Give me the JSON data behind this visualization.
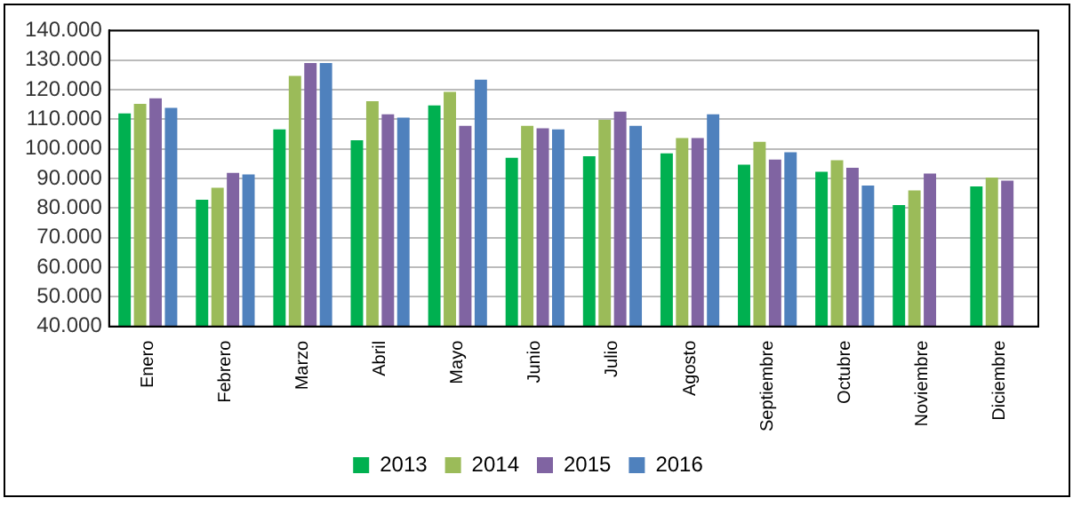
{
  "chart_data": {
    "type": "bar",
    "categories": [
      "Enero",
      "Febrero",
      "Marzo",
      "Abril",
      "Mayo",
      "Junio",
      "Julio",
      "Agosto",
      "Septiembre",
      "Octubre",
      "Noviembre",
      "Diciembre"
    ],
    "series": [
      {
        "name": "2013",
        "color": "#00b050",
        "values": [
          112000,
          82800,
          106600,
          102900,
          114700,
          97000,
          97500,
          98500,
          94700,
          92300,
          81000,
          87300
        ]
      },
      {
        "name": "2014",
        "color": "#9bbb59",
        "values": [
          115200,
          86900,
          124700,
          116100,
          119300,
          107800,
          109800,
          103700,
          102400,
          96200,
          86000,
          90300
        ]
      },
      {
        "name": "2015",
        "color": "#8064a2",
        "values": [
          117100,
          91900,
          129000,
          111700,
          107800,
          107000,
          112600,
          103700,
          96400,
          93600,
          91700,
          89300
        ]
      },
      {
        "name": "2016",
        "color": "#4f81bd",
        "values": [
          113900,
          91400,
          129000,
          110600,
          123400,
          106600,
          107800,
          111700,
          98900,
          87600,
          null,
          null
        ]
      }
    ],
    "ylim": [
      40000,
      140000
    ],
    "yticks": [
      {
        "value": 40000,
        "label": "40.000"
      },
      {
        "value": 50000,
        "label": "50.000"
      },
      {
        "value": 60000,
        "label": "60.000"
      },
      {
        "value": 70000,
        "label": "70.000"
      },
      {
        "value": 80000,
        "label": "80.000"
      },
      {
        "value": 90000,
        "label": "90.000"
      },
      {
        "value": 100000,
        "label": "100.000"
      },
      {
        "value": 110000,
        "label": "110.000"
      },
      {
        "value": 120000,
        "label": "120.000"
      },
      {
        "value": 130000,
        "label": "130.000"
      },
      {
        "value": 140000,
        "label": "140.000"
      }
    ],
    "grid": "y",
    "legend": "bottom"
  }
}
